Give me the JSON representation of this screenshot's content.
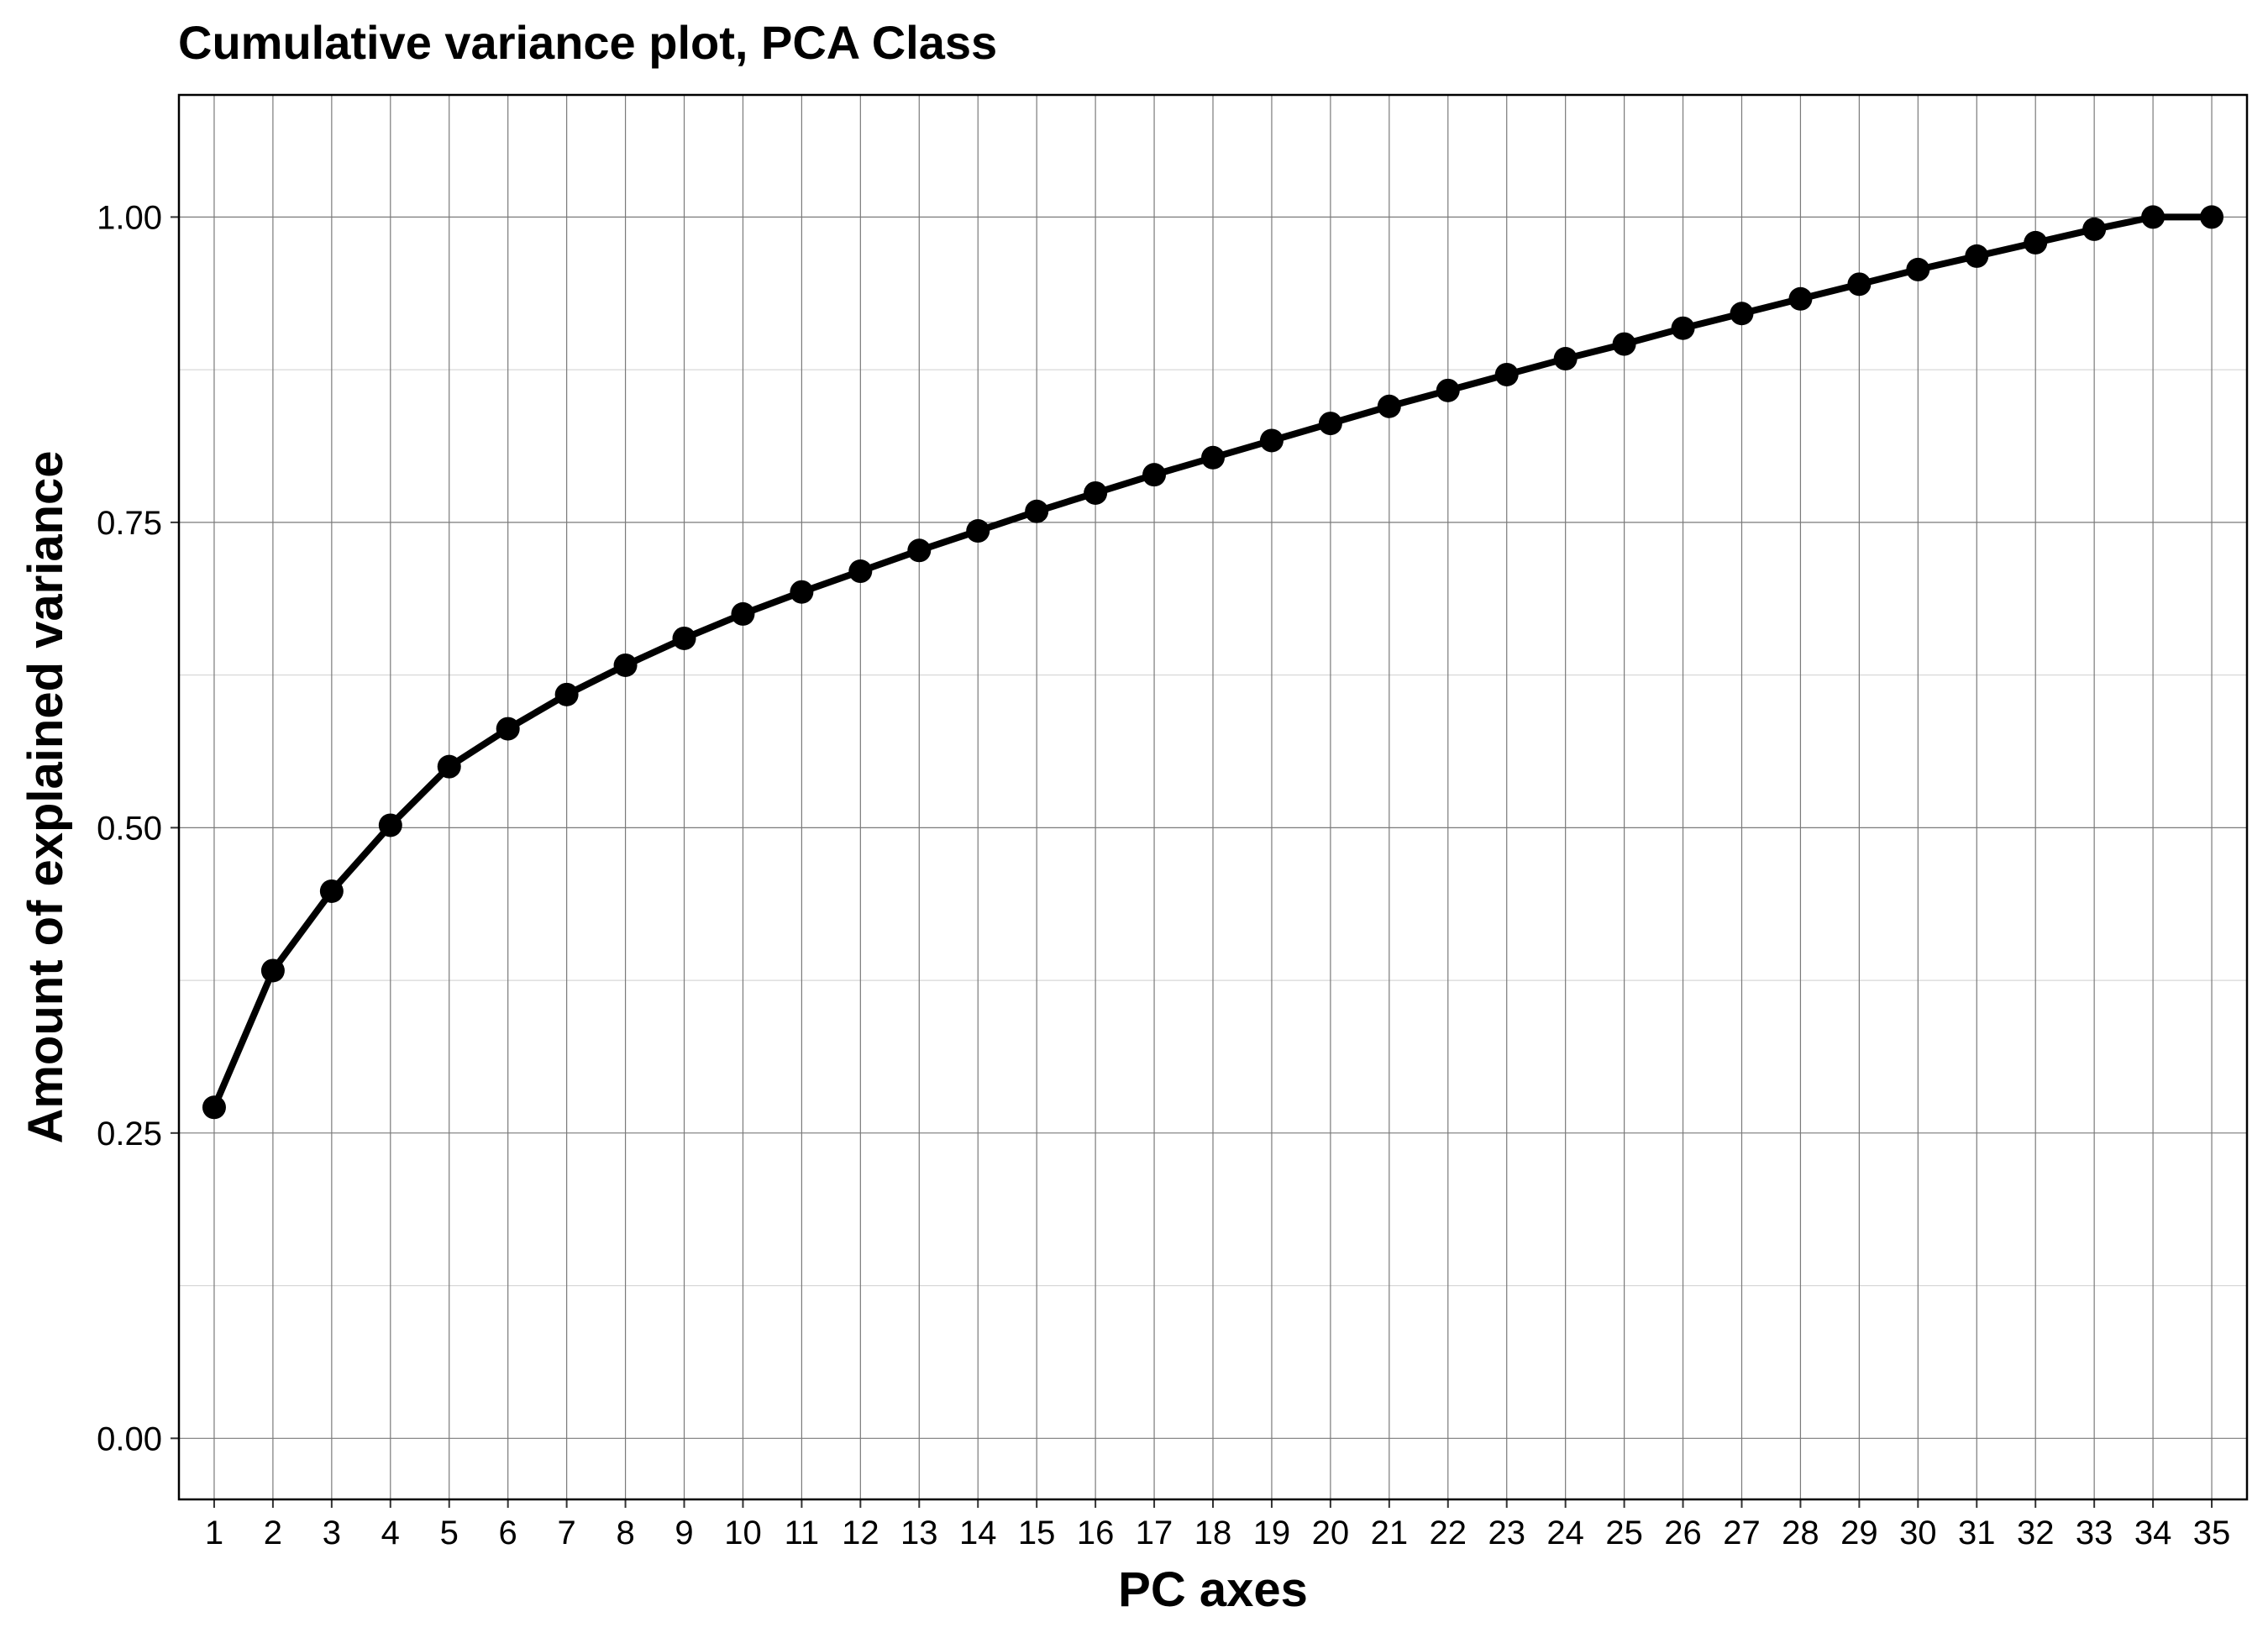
{
  "chart_data": {
    "type": "line",
    "title": "Cumulative variance plot, PCA Class",
    "xlabel": "PC axes",
    "ylabel": "Amount of explained variance",
    "x": [
      1,
      2,
      3,
      4,
      5,
      6,
      7,
      8,
      9,
      10,
      11,
      12,
      13,
      14,
      15,
      16,
      17,
      18,
      19,
      20,
      21,
      22,
      23,
      24,
      25,
      26,
      27,
      28,
      29,
      30,
      31,
      32,
      33,
      34,
      35
    ],
    "series": [
      {
        "values": [
          0.271,
          0.383,
          0.448,
          0.502,
          0.55,
          0.581,
          0.609,
          0.633,
          0.655,
          0.675,
          0.693,
          0.71,
          0.727,
          0.743,
          0.759,
          0.774,
          0.789,
          0.803,
          0.817,
          0.831,
          0.845,
          0.858,
          0.871,
          0.884,
          0.896,
          0.909,
          0.921,
          0.933,
          0.945,
          0.957,
          0.968,
          0.979,
          0.99,
          1.0,
          1.0
        ]
      }
    ],
    "xlim": [
      0.4,
      35.6
    ],
    "ylim": [
      -0.05,
      1.1
    ],
    "yticks": [
      "0.00",
      "0.25",
      "0.50",
      "0.75",
      "1.00"
    ],
    "grid": true,
    "legend": "none",
    "colors": {
      "line": "#000000",
      "point": "#000000",
      "grid": "#7a7a7a"
    }
  }
}
